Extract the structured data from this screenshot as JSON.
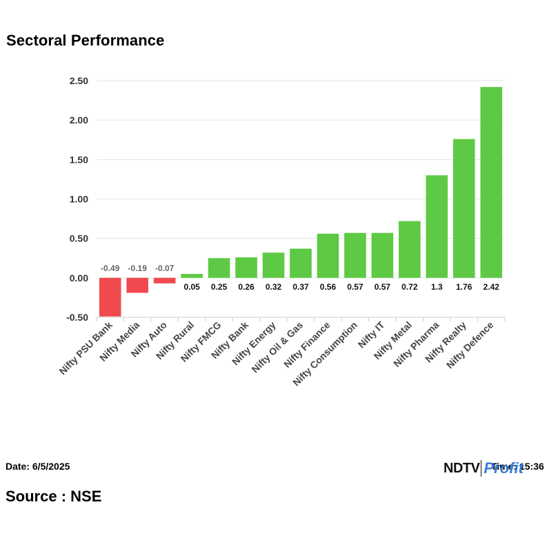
{
  "page": {
    "title": "Sectoral Performance",
    "date_text": "Date: 6/5/2025",
    "time_text": "Time: 15:36",
    "source_text": "Source : NSE",
    "logo": {
      "brand": "NDTV",
      "product": "Profit"
    }
  },
  "chart_data": {
    "type": "bar",
    "title": "Sectoral Performance",
    "xlabel": "",
    "ylabel": "",
    "ylim": [
      -0.5,
      2.5
    ],
    "yticks": [
      "-0.50",
      "0.00",
      "0.50",
      "1.00",
      "1.50",
      "2.00",
      "2.50"
    ],
    "grid": true,
    "categories": [
      "Nifty PSU Bank",
      "Nifty Media",
      "Nifty Auto",
      "Nifty Rural",
      "Nifty FMCG",
      "Nifty Bank",
      "Nifty Energy",
      "Nifty Oil & Gas",
      "Nifty Finance",
      "Nifty Consumption",
      "Nifty IT",
      "Nifty Metal",
      "Nifty Pharma",
      "Nifty Realty",
      "Nifty Defence"
    ],
    "values": [
      -0.49,
      -0.19,
      -0.07,
      0.05,
      0.25,
      0.26,
      0.32,
      0.37,
      0.56,
      0.57,
      0.57,
      0.72,
      1.3,
      1.76,
      2.42
    ],
    "value_labels": [
      "-0.49",
      "-0.19",
      "-0.07",
      "0.05",
      "0.25",
      "0.26",
      "0.32",
      "0.37",
      "0.56",
      "0.57",
      "0.57",
      "0.72",
      "1.3",
      "1.76",
      "2.42"
    ],
    "colors": {
      "positive": "#5ec944",
      "negative": "#f04a4f",
      "grid": "#e3e3e3",
      "axis": "#cccccc",
      "neg_label": "#666666",
      "pos_label": "#111111"
    }
  }
}
